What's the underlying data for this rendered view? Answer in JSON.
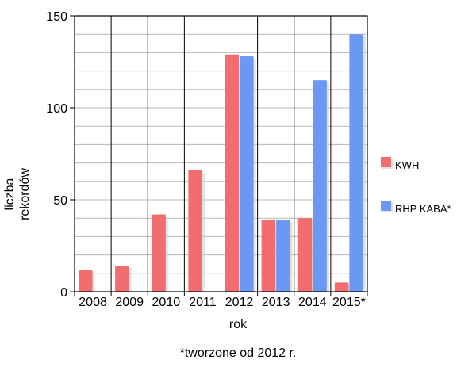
{
  "chart_data": {
    "type": "bar",
    "categories": [
      "2008",
      "2009",
      "2010",
      "2011",
      "2012",
      "2013",
      "2014",
      "2015*"
    ],
    "series": [
      {
        "name": "KWH",
        "color": "#f26d6d",
        "values": [
          12,
          14,
          42,
          66,
          129,
          39,
          40,
          5
        ]
      },
      {
        "name": "RHP KABA*",
        "color": "#6b97f5",
        "values": [
          null,
          null,
          null,
          null,
          128,
          39,
          115,
          140
        ]
      }
    ],
    "ylim": [
      0,
      150
    ],
    "yticks": [
      0,
      50,
      100,
      150
    ],
    "xlabel": "rok",
    "ylabel_lines": [
      "liczba",
      "rekordów"
    ],
    "footnote": "*tworzone od 2012 r.",
    "grid": true,
    "legend": "right"
  }
}
